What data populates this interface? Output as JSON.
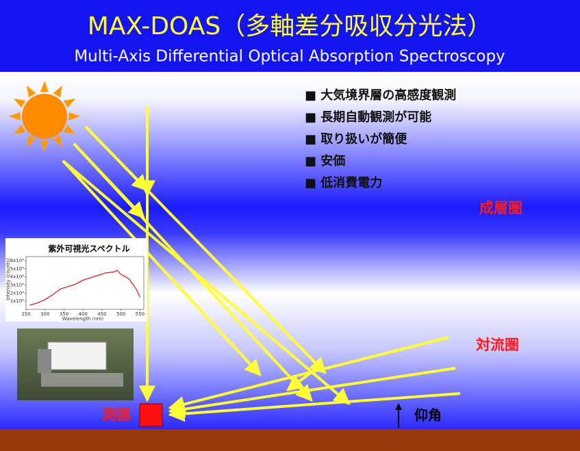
{
  "header": {
    "title": "MAX-DOAS（多軸差分吸収分光法）",
    "subtitle": "Multi-Axis Differential Optical Absorption Spectroscopy"
  },
  "bullets": [
    "■ 大気境界層の高感度観測",
    "■ 長期自動観測が可能",
    "■ 取り扱いが簡便",
    "■ 安価",
    "■ 低消費電力"
  ],
  "labels": {
    "stratosphere": "成層圏",
    "troposphere": "対流圏",
    "instrument": "測器",
    "elevation": "仰角"
  },
  "inset": {
    "title": "紫外可視光スペクトル",
    "xlabel": "Wavelength (nm)",
    "ylabel": "Intensity (counts)",
    "xlim": [
      250,
      560
    ],
    "ylim": [
      0,
      6.5
    ],
    "xticks": [
      250,
      300,
      350,
      400,
      450,
      500,
      550
    ],
    "yticks": [
      {
        "value": 1,
        "label": "1x10⁴"
      },
      {
        "value": 2,
        "label": "2x10⁴"
      },
      {
        "value": 3,
        "label": "3x10⁴"
      },
      {
        "value": 4,
        "label": "4x10⁴"
      },
      {
        "value": 5,
        "label": "5x10⁴"
      },
      {
        "value": 6,
        "label": "6x10⁴"
      }
    ],
    "x": [
      260,
      280,
      300,
      320,
      340,
      360,
      380,
      400,
      420,
      440,
      460,
      480,
      490,
      500,
      520,
      540,
      550
    ],
    "values": [
      0.5,
      0.8,
      1.2,
      1.8,
      2.5,
      2.8,
      3.1,
      3.6,
      3.9,
      4.2,
      4.5,
      4.6,
      4.8,
      4.3,
      3.8,
      2.5,
      1.5
    ],
    "color": "#dd1111"
  }
}
